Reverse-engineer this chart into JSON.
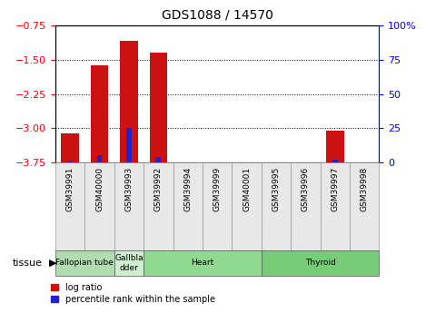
{
  "title": "GDS1088 / 14570",
  "samples": [
    "GSM39991",
    "GSM40000",
    "GSM39993",
    "GSM39992",
    "GSM39994",
    "GSM39999",
    "GSM40001",
    "GSM39995",
    "GSM39996",
    "GSM39997",
    "GSM39998"
  ],
  "log_ratio": [
    -3.1,
    -1.63,
    -1.1,
    -1.35,
    0,
    0,
    0,
    0,
    0,
    -3.05,
    0
  ],
  "percentile_rank": [
    1.0,
    5.5,
    25.0,
    4.0,
    0,
    0,
    0,
    0,
    0,
    2.0,
    0
  ],
  "tissue_groups": [
    {
      "label": "Fallopian tube",
      "start": 0,
      "end": 2,
      "color": "#b0ddb0"
    },
    {
      "label": "Gallbla\ndder",
      "start": 2,
      "end": 3,
      "color": "#d0eed0"
    },
    {
      "label": "Heart",
      "start": 3,
      "end": 7,
      "color": "#90d990"
    },
    {
      "label": "Thyroid",
      "start": 7,
      "end": 11,
      "color": "#77cc77"
    }
  ],
  "ylim_left": [
    -3.75,
    -0.75
  ],
  "ylim_right": [
    0,
    100
  ],
  "yticks_left": [
    -3.75,
    -3.0,
    -2.25,
    -1.5,
    -0.75
  ],
  "yticks_right": [
    0,
    25,
    50,
    75,
    100
  ],
  "bar_color": "#cc1111",
  "percentile_color": "#2222cc",
  "grid_color": "#000000",
  "bar_width": 0.6,
  "percentile_bar_width": 0.18,
  "figsize": [
    4.69,
    3.45
  ],
  "dpi": 100
}
